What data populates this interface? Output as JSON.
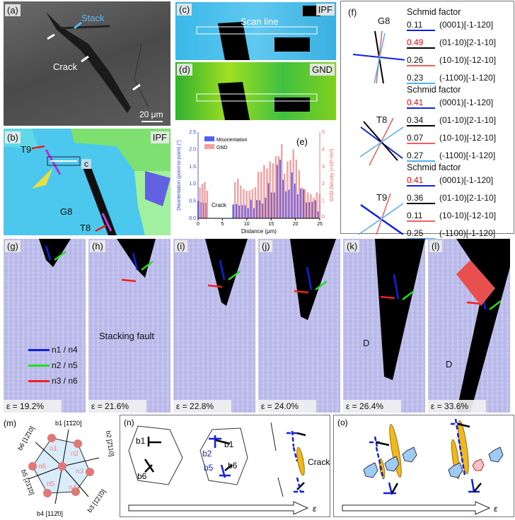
{
  "panel_a": {
    "label": "(a)",
    "stack": "Stack",
    "crack": "Crack",
    "scale": "20 μm"
  },
  "panel_b": {
    "label": "(b)",
    "ipf": "IPF",
    "t9": "T9",
    "t8": "T8",
    "g8": "G8",
    "c": "c"
  },
  "panel_c": {
    "label": "(c)",
    "ipf": "IPF",
    "scan": "Scan line"
  },
  "panel_d": {
    "label": "(d)",
    "gnd": "GND"
  },
  "chart_data": {
    "type": "bar",
    "label": "(e)",
    "xlabel": "Distance (μm)",
    "ylabel": "Disorientation (point-to-point) (°)",
    "y2label": "GND Density (×10¹⁴/m²)",
    "xlim": [
      0,
      25
    ],
    "ylim": [
      0,
      2.5
    ],
    "y2lim": [
      0,
      5
    ],
    "xticks": [
      "0",
      "5",
      "10",
      "15",
      "20",
      "25"
    ],
    "yticks": [
      "0.0",
      "0.5",
      "1.0",
      "1.5",
      "2.0",
      "2.5"
    ],
    "y2ticks": [
      "0",
      "1",
      "2",
      "3",
      "4",
      "5"
    ],
    "annotation": "Crack",
    "legend_position": "top-left",
    "x": [
      0.2,
      0.7,
      1.2,
      1.7,
      7.4,
      8.0,
      8.6,
      9.2,
      9.8,
      10.4,
      11.0,
      11.6,
      12.2,
      12.8,
      13.4,
      14.0,
      14.6,
      15.2,
      15.8,
      16.4,
      17.0,
      17.6,
      18.2,
      18.8,
      19.4,
      20.0,
      20.6,
      21.2,
      21.8,
      22.4,
      23.0,
      23.6,
      24.2,
      24.8
    ],
    "series": [
      {
        "name": "Misorientation",
        "axis": "left",
        "color": "#5060f0",
        "values": [
          0.5,
          0.46,
          0.45,
          0.45,
          0.4,
          0.41,
          0.37,
          0.38,
          0.38,
          0.3,
          0.54,
          0.3,
          0.53,
          0.52,
          0.43,
          0.6,
          1.02,
          0.75,
          0.75,
          1.55,
          1.7,
          1.12,
          0.78,
          0.83,
          1.33,
          1.01,
          0.7,
          0.86,
          0.84,
          0.46,
          0.47,
          0.48,
          0.52,
          0.2
        ]
      },
      {
        "name": "GND",
        "axis": "right",
        "color": "#f4a0a0",
        "values": [
          1.8,
          2.0,
          2.1,
          1.6,
          2.1,
          2.3,
          1.9,
          1.7,
          1.6,
          1.6,
          1.7,
          1.8,
          2.7,
          2.7,
          3.1,
          2.9,
          3.3,
          3.2,
          3.6,
          3.6,
          4.3,
          2.6,
          3.3,
          3.4,
          4.0,
          3.4,
          2.8,
          1.8,
          1.7,
          1.5,
          1.4,
          1.2,
          1.5,
          1.4
        ]
      }
    ]
  },
  "panel_f": {
    "label": "(f)",
    "groups": [
      {
        "grain": "G8",
        "title": "Schmid factor",
        "rows": [
          {
            "value": "0.11",
            "system": "(0001)[-1-120]",
            "line": "#1020e0",
            "hi": false
          },
          {
            "value": "0.49",
            "system": "(01-10)[2-1-10]",
            "line": "#000000",
            "hi": true
          },
          {
            "value": "0.26",
            "system": "(10-10)[-12-10]",
            "line": "#f06060",
            "hi": false
          },
          {
            "value": "0.23",
            "system": "(-1100)[-1-120]",
            "line": "#50b0f0",
            "hi": false
          }
        ]
      },
      {
        "grain": "T8",
        "title": "Schmid factor",
        "rows": [
          {
            "value": "0.41",
            "system": "(0001)[-1-120]",
            "line": "#1020e0",
            "hi": true
          },
          {
            "value": "0.34",
            "system": "(01-10)[2-1-10]",
            "line": "#000000",
            "hi": false
          },
          {
            "value": "0.07",
            "system": "(10-10)[-12-10]",
            "line": "#f06060",
            "hi": false
          },
          {
            "value": "0.27",
            "system": "(-1100)[-1-120]",
            "line": "#50b0f0",
            "hi": false
          }
        ]
      },
      {
        "grain": "T9",
        "title": "Schmid factor",
        "rows": [
          {
            "value": "0.41",
            "system": "(0001)[-1-120]",
            "line": "#1020e0",
            "hi": true
          },
          {
            "value": "0.36",
            "system": "(01-10)[2-1-10]",
            "line": "#000000",
            "hi": false
          },
          {
            "value": "0.11",
            "system": "(10-10)[-12-10]",
            "line": "#f06060",
            "hi": false
          },
          {
            "value": "0.25",
            "system": "(-1100)[-1-120]",
            "line": "#50b0f0",
            "hi": false
          }
        ]
      }
    ]
  },
  "md": {
    "panels": [
      {
        "label": "(g)",
        "strain": "ε = 19.2%"
      },
      {
        "label": "(h)",
        "strain": "ε = 21.6%"
      },
      {
        "label": "(i)",
        "strain": "ε = 22.8%"
      },
      {
        "label": "(j)",
        "strain": "ε = 24.0%"
      },
      {
        "label": "(k)",
        "strain": "ε = 26.4%"
      },
      {
        "label": "(l)",
        "strain": "ε = 33.6%"
      }
    ],
    "legend": [
      {
        "text": "n1 / n4",
        "color": "#1020e0"
      },
      {
        "text": "n2 / n5",
        "color": "#20e020"
      },
      {
        "text": "n3 / n6",
        "color": "#f02020"
      }
    ],
    "stacking_fault": "Stacking fault",
    "d": "D"
  },
  "panel_m": {
    "label": "(m)",
    "b1": "b1 [1̄1̄20]",
    "b2": "b2 [2̄110]",
    "b3": "b3 [1̄21̄0]",
    "b4": "b4 [112̄0]",
    "b5": "b5 [21̄1̄0]",
    "b6": "b6 [12̄10]",
    "n": [
      "n1",
      "n2",
      "n3",
      "n4",
      "n5",
      "n6"
    ]
  },
  "panel_n": {
    "label": "(n)",
    "b1": "b1",
    "b6": "b6",
    "b2": "b2",
    "b5": "b5",
    "crack": "Crack",
    "eps": "ε"
  },
  "panel_o": {
    "label": "(o)",
    "eps": "ε"
  }
}
